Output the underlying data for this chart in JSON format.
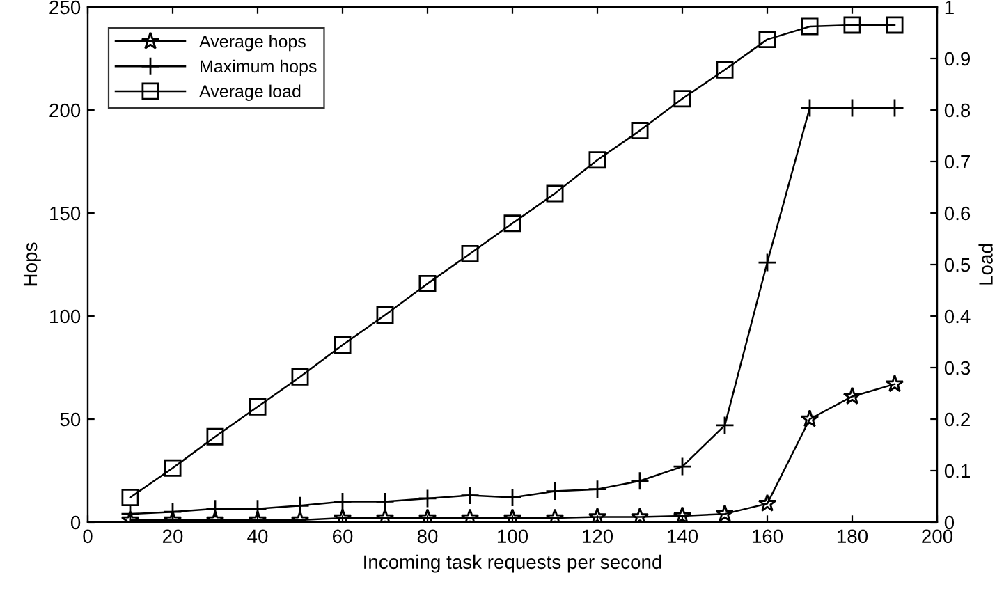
{
  "chart_data": {
    "type": "line",
    "xlabel": "Incoming task requests per second",
    "ylabel": "Hops",
    "y2label": "Load",
    "x": [
      10,
      20,
      30,
      40,
      50,
      60,
      70,
      80,
      90,
      100,
      110,
      120,
      130,
      140,
      150,
      160,
      170,
      180,
      190
    ],
    "xlim": [
      0,
      200
    ],
    "xticks": [
      0,
      20,
      40,
      60,
      80,
      100,
      120,
      140,
      160,
      180,
      200
    ],
    "ylim": [
      0,
      250
    ],
    "yticks": [
      0,
      50,
      100,
      150,
      200,
      250
    ],
    "y2lim": [
      0,
      1
    ],
    "y2ticks": [
      0,
      0.1,
      0.2,
      0.3,
      0.4,
      0.5,
      0.6,
      0.7,
      0.8,
      0.9,
      1
    ],
    "legend": "top left",
    "grid": false,
    "series": [
      {
        "name": "Average hops",
        "color": "#000000",
        "marker": "star",
        "values": [
          1,
          1,
          1,
          1,
          1,
          2,
          2,
          2,
          2,
          2,
          2,
          2.5,
          2.5,
          3,
          4,
          9,
          50,
          61,
          67
        ]
      },
      {
        "name": "Maximum hops",
        "color": "#000000",
        "marker": "cross",
        "values": [
          4,
          5,
          6.5,
          6.5,
          8,
          10,
          10,
          11.5,
          13,
          12,
          15,
          16,
          20,
          27,
          47,
          126,
          201,
          201,
          201
        ]
      },
      {
        "name": "Average load",
        "color": "#000000",
        "marker": "square",
        "axis": "y2",
        "values": [
          0.048,
          0.105,
          0.166,
          0.224,
          0.282,
          0.344,
          0.402,
          0.463,
          0.521,
          0.58,
          0.638,
          0.703,
          0.76,
          0.822,
          0.878,
          0.937,
          0.962,
          0.965,
          0.965
        ]
      }
    ]
  }
}
